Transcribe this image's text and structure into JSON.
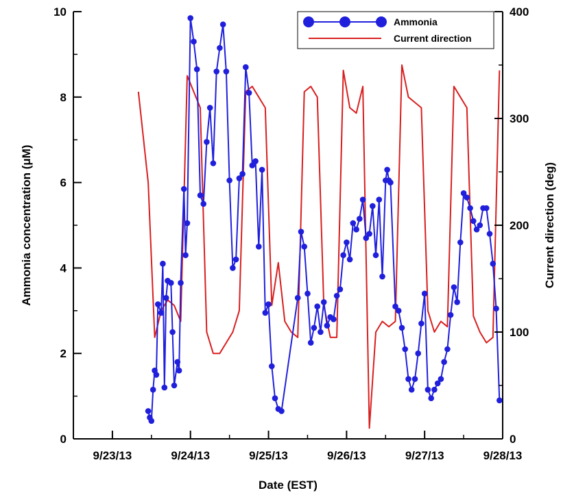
{
  "chart_data": {
    "type": "line",
    "xlabel": "Date (EST)",
    "ylabel": "Ammonia concentration (μM)",
    "y2label": "Current direction (deg)",
    "x_tick_labels": [
      "9/23/13",
      "9/24/13",
      "9/25/13",
      "9/26/13",
      "9/27/13",
      "9/28/13"
    ],
    "xlim": [
      "9/22/13 12:00",
      "9/28/13 00:00"
    ],
    "ylim": [
      0,
      10
    ],
    "y_ticks": [
      0,
      2,
      4,
      6,
      8,
      10
    ],
    "y2lim": [
      0,
      400
    ],
    "y2_ticks": [
      0,
      100,
      200,
      300,
      400
    ],
    "grid": false,
    "legend_position": "top-right",
    "colors": {
      "ammonia": "#1f1fdc",
      "current": "#d81e1e"
    },
    "series": [
      {
        "name": "Ammonia",
        "axis": "left",
        "marker": "circle",
        "points": [
          [
            "9/23/13 11:00",
            0.65
          ],
          [
            "9/23/13 11:30",
            0.5
          ],
          [
            "9/23/13 12:00",
            0.42
          ],
          [
            "9/23/13 12:30",
            1.15
          ],
          [
            "9/23/13 13:00",
            1.6
          ],
          [
            "9/23/13 13:30",
            1.5
          ],
          [
            "9/23/13 14:00",
            3.15
          ],
          [
            "9/23/13 15:00",
            2.95
          ],
          [
            "9/23/13 15:30",
            4.1
          ],
          [
            "9/23/13 16:00",
            1.2
          ],
          [
            "9/23/13 16:30",
            3.3
          ],
          [
            "9/23/13 17:00",
            3.7
          ],
          [
            "9/23/13 18:00",
            3.65
          ],
          [
            "9/23/13 18:30",
            2.5
          ],
          [
            "9/23/13 19:00",
            1.25
          ],
          [
            "9/23/13 20:00",
            1.8
          ],
          [
            "9/23/13 20:30",
            1.6
          ],
          [
            "9/23/13 21:00",
            3.65
          ],
          [
            "9/23/13 22:00",
            5.85
          ],
          [
            "9/23/13 22:30",
            4.3
          ],
          [
            "9/23/13 23:00",
            5.05
          ],
          [
            "9/24/13 00:00",
            9.85
          ],
          [
            "9/24/13 01:00",
            9.3
          ],
          [
            "9/24/13 02:00",
            8.65
          ],
          [
            "9/24/13 03:00",
            5.7
          ],
          [
            "9/24/13 04:00",
            5.5
          ],
          [
            "9/24/13 05:00",
            6.95
          ],
          [
            "9/24/13 06:00",
            7.75
          ],
          [
            "9/24/13 07:00",
            6.45
          ],
          [
            "9/24/13 08:00",
            8.6
          ],
          [
            "9/24/13 09:00",
            9.15
          ],
          [
            "9/24/13 10:00",
            9.7
          ],
          [
            "9/24/13 11:00",
            8.6
          ],
          [
            "9/24/13 12:00",
            6.05
          ],
          [
            "9/24/13 13:00",
            4.0
          ],
          [
            "9/24/13 14:00",
            4.2
          ],
          [
            "9/24/13 15:00",
            6.1
          ],
          [
            "9/24/13 16:00",
            6.2
          ],
          [
            "9/24/13 17:00",
            8.7
          ],
          [
            "9/24/13 18:00",
            8.1
          ],
          [
            "9/24/13 19:00",
            6.4
          ],
          [
            "9/24/13 20:00",
            6.5
          ],
          [
            "9/24/13 21:00",
            4.5
          ],
          [
            "9/24/13 22:00",
            6.3
          ],
          [
            "9/24/13 23:00",
            2.95
          ],
          [
            "9/25/13 00:00",
            3.15
          ],
          [
            "9/25/13 01:00",
            1.7
          ],
          [
            "9/25/13 02:00",
            0.95
          ],
          [
            "9/25/13 03:00",
            0.7
          ],
          [
            "9/25/13 04:00",
            0.65
          ],
          [
            "9/25/13 09:00",
            3.3
          ],
          [
            "9/25/13 10:00",
            4.85
          ],
          [
            "9/25/13 11:00",
            4.5
          ],
          [
            "9/25/13 12:00",
            3.4
          ],
          [
            "9/25/13 13:00",
            2.25
          ],
          [
            "9/25/13 14:00",
            2.6
          ],
          [
            "9/25/13 15:00",
            3.1
          ],
          [
            "9/25/13 16:00",
            2.5
          ],
          [
            "9/25/13 17:00",
            3.2
          ],
          [
            "9/25/13 18:00",
            2.65
          ],
          [
            "9/25/13 19:00",
            2.85
          ],
          [
            "9/25/13 20:00",
            2.8
          ],
          [
            "9/25/13 21:00",
            3.35
          ],
          [
            "9/25/13 22:00",
            3.5
          ],
          [
            "9/25/13 23:00",
            4.3
          ],
          [
            "9/26/13 00:00",
            4.6
          ],
          [
            "9/26/13 01:00",
            4.2
          ],
          [
            "9/26/13 02:00",
            5.05
          ],
          [
            "9/26/13 03:00",
            4.9
          ],
          [
            "9/26/13 04:00",
            5.15
          ],
          [
            "9/26/13 05:00",
            5.6
          ],
          [
            "9/26/13 06:00",
            4.7
          ],
          [
            "9/26/13 07:00",
            4.8
          ],
          [
            "9/26/13 08:00",
            5.45
          ],
          [
            "9/26/13 09:00",
            4.3
          ],
          [
            "9/26/13 10:00",
            5.6
          ],
          [
            "9/26/13 11:00",
            3.8
          ],
          [
            "9/26/13 12:00",
            6.05
          ],
          [
            "9/26/13 12:30",
            6.3
          ],
          [
            "9/26/13 13:00",
            6.05
          ],
          [
            "9/26/13 13:30",
            6.0
          ],
          [
            "9/26/13 15:00",
            3.1
          ],
          [
            "9/26/13 16:00",
            3.0
          ],
          [
            "9/26/13 17:00",
            2.6
          ],
          [
            "9/26/13 18:00",
            2.1
          ],
          [
            "9/26/13 19:00",
            1.4
          ],
          [
            "9/26/13 20:00",
            1.15
          ],
          [
            "9/26/13 21:00",
            1.4
          ],
          [
            "9/26/13 22:00",
            2.0
          ],
          [
            "9/26/13 23:00",
            2.7
          ],
          [
            "9/27/13 00:00",
            3.4
          ],
          [
            "9/27/13 01:00",
            1.15
          ],
          [
            "9/27/13 02:00",
            0.95
          ],
          [
            "9/27/13 03:00",
            1.15
          ],
          [
            "9/27/13 04:00",
            1.3
          ],
          [
            "9/27/13 05:00",
            1.4
          ],
          [
            "9/27/13 06:00",
            1.8
          ],
          [
            "9/27/13 07:00",
            2.1
          ],
          [
            "9/27/13 08:00",
            2.9
          ],
          [
            "9/27/13 09:00",
            3.55
          ],
          [
            "9/27/13 10:00",
            3.2
          ],
          [
            "9/27/13 11:00",
            4.6
          ],
          [
            "9/27/13 12:00",
            5.75
          ],
          [
            "9/27/13 13:00",
            5.65
          ],
          [
            "9/27/13 14:00",
            5.4
          ],
          [
            "9/27/13 15:00",
            5.1
          ],
          [
            "9/27/13 16:00",
            4.9
          ],
          [
            "9/27/13 17:00",
            5.0
          ],
          [
            "9/27/13 18:00",
            5.4
          ],
          [
            "9/27/13 19:00",
            5.4
          ],
          [
            "9/27/13 20:00",
            4.8
          ],
          [
            "9/27/13 21:00",
            4.1
          ],
          [
            "9/27/13 22:00",
            3.05
          ],
          [
            "9/27/13 23:00",
            0.9
          ]
        ]
      },
      {
        "name": "Current direction",
        "axis": "right",
        "marker": "none",
        "points": [
          [
            "9/23/13 08:00",
            325
          ],
          [
            "9/23/13 11:00",
            240
          ],
          [
            "9/23/13 13:00",
            95
          ],
          [
            "9/23/13 15:00",
            120
          ],
          [
            "9/23/13 17:00",
            130
          ],
          [
            "9/23/13 19:00",
            125
          ],
          [
            "9/23/13 21:00",
            110
          ],
          [
            "9/23/13 23:00",
            340
          ],
          [
            "9/24/13 01:00",
            325
          ],
          [
            "9/24/13 03:00",
            310
          ],
          [
            "9/24/13 05:00",
            100
          ],
          [
            "9/24/13 07:00",
            80
          ],
          [
            "9/24/13 09:00",
            80
          ],
          [
            "9/24/13 11:00",
            90
          ],
          [
            "9/24/13 13:00",
            100
          ],
          [
            "9/24/13 15:00",
            120
          ],
          [
            "9/24/13 17:00",
            325
          ],
          [
            "9/24/13 19:00",
            330
          ],
          [
            "9/24/13 21:00",
            320
          ],
          [
            "9/24/13 23:00",
            310
          ],
          [
            "9/25/13 01:00",
            125
          ],
          [
            "9/25/13 03:00",
            165
          ],
          [
            "9/25/13 05:00",
            110
          ],
          [
            "9/25/13 07:00",
            100
          ],
          [
            "9/25/13 09:00",
            95
          ],
          [
            "9/25/13 11:00",
            325
          ],
          [
            "9/25/13 13:00",
            330
          ],
          [
            "9/25/13 15:00",
            320
          ],
          [
            "9/25/13 17:00",
            125
          ],
          [
            "9/25/13 19:00",
            95
          ],
          [
            "9/25/13 21:00",
            95
          ],
          [
            "9/25/13 23:00",
            345
          ],
          [
            "9/26/13 01:00",
            310
          ],
          [
            "9/26/13 03:00",
            305
          ],
          [
            "9/26/13 05:00",
            330
          ],
          [
            "9/26/13 07:00",
            10
          ],
          [
            "9/26/13 09:00",
            100
          ],
          [
            "9/26/13 11:00",
            110
          ],
          [
            "9/26/13 13:00",
            105
          ],
          [
            "9/26/13 15:00",
            110
          ],
          [
            "9/26/13 17:00",
            350
          ],
          [
            "9/26/13 19:00",
            320
          ],
          [
            "9/26/13 21:00",
            315
          ],
          [
            "9/26/13 23:00",
            310
          ],
          [
            "9/27/13 01:00",
            120
          ],
          [
            "9/27/13 03:00",
            100
          ],
          [
            "9/27/13 05:00",
            110
          ],
          [
            "9/27/13 07:00",
            105
          ],
          [
            "9/27/13 09:00",
            330
          ],
          [
            "9/27/13 11:00",
            320
          ],
          [
            "9/27/13 13:00",
            310
          ],
          [
            "9/27/13 15:00",
            115
          ],
          [
            "9/27/13 17:00",
            100
          ],
          [
            "9/27/13 19:00",
            90
          ],
          [
            "9/27/13 21:00",
            95
          ],
          [
            "9/27/13 23:00",
            345
          ],
          [
            "9/28/13 01:00",
            320
          ],
          [
            "9/28/13 03:00",
            330
          ],
          [
            "9/28/13 05:00",
            110
          ],
          [
            "9/28/13 07:00",
            105
          ],
          [
            "9/28/13 09:00",
            110
          ],
          [
            "9/28/13 11:00",
            340
          ],
          [
            "9/28/13 13:00",
            330
          ],
          [
            "9/28/13 15:00",
            345
          ],
          [
            "9/28/13 17:00",
            310
          ],
          [
            "9/28/13 19:00",
            110
          ],
          [
            "9/28/13 21:00",
            105
          ],
          [
            "9/28/13 23:00",
            115
          ],
          [
            "9/29/13 01:00",
            120
          ],
          [
            "9/29/13 03:00",
            130
          ],
          [
            "9/29/13 05:00",
            345
          ],
          [
            "9/29/13 07:00",
            310
          ],
          [
            "9/29/13 09:00",
            335
          ],
          [
            "9/29/13 11:00",
            300
          ],
          [
            "9/29/13 13:00",
            130
          ],
          [
            "9/29/13 15:00",
            110
          ],
          [
            "9/29/13 17:00",
            105
          ],
          [
            "9/29/13 19:00",
            95
          ],
          [
            "9/29/13 21:00",
            100
          ],
          [
            "9/29/13 23:00",
            180
          ]
        ]
      }
    ]
  }
}
